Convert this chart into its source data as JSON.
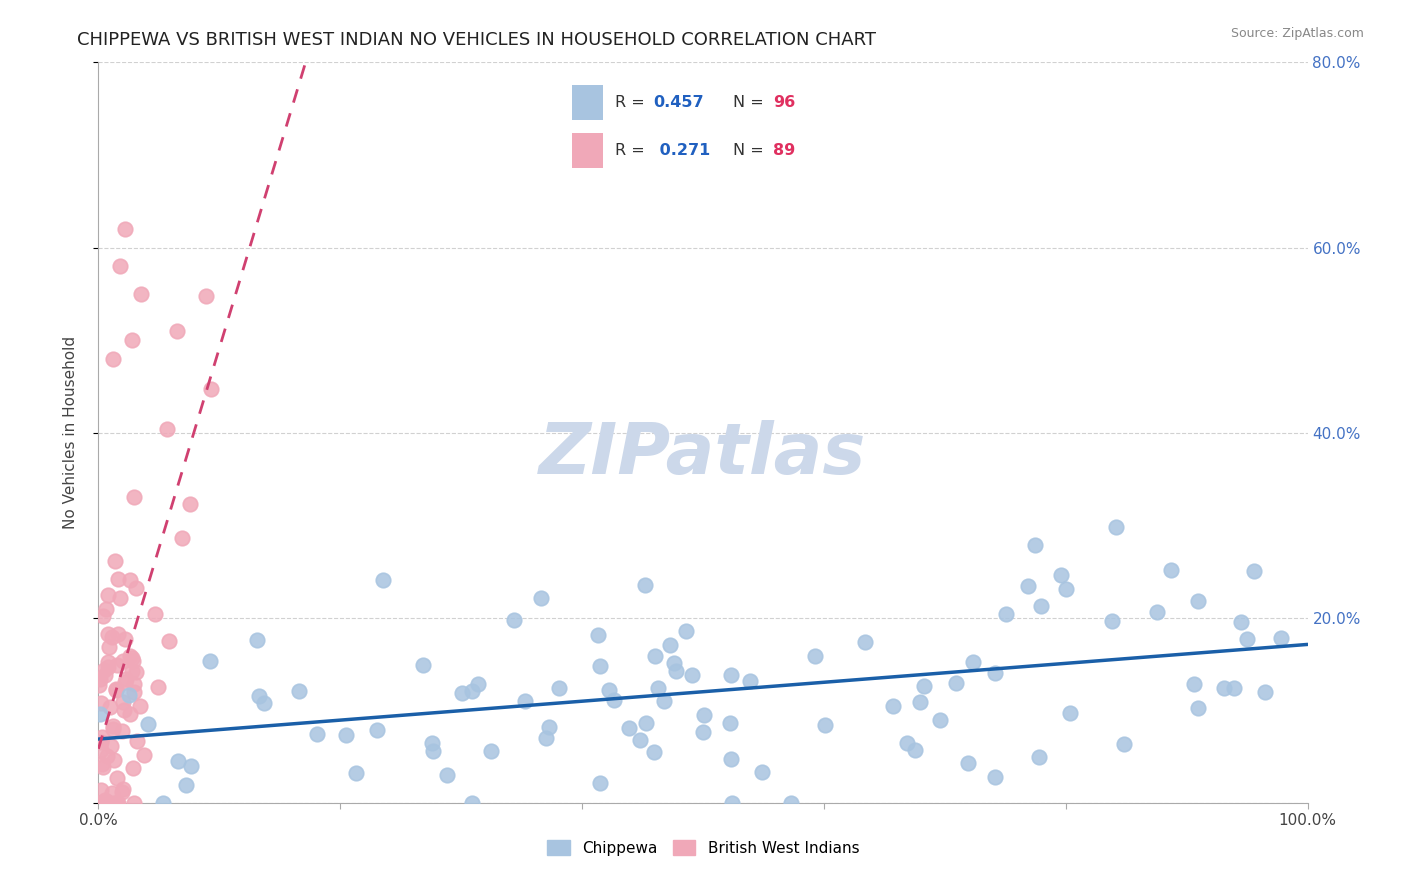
{
  "title": "CHIPPEWA VS BRITISH WEST INDIAN NO VEHICLES IN HOUSEHOLD CORRELATION CHART",
  "source": "Source: ZipAtlas.com",
  "ylabel": "No Vehicles in Household",
  "xlim": [
    0.0,
    100.0
  ],
  "ylim": [
    0.0,
    80.0
  ],
  "chippewa_color": "#a8c4e0",
  "british_color": "#f0a8b8",
  "chippewa_line_color": "#1a5fa8",
  "british_line_color": "#d04070",
  "chippewa_R": 0.457,
  "chippewa_N": 96,
  "british_R": 0.271,
  "british_N": 89,
  "watermark": "ZIPatlas",
  "background_color": "#ffffff",
  "grid_color": "#cccccc",
  "title_fontsize": 13,
  "watermark_color": "#ccd8ea",
  "legend_text_color": "#333333",
  "legend_val_color": "#2060c0",
  "legend_n_color": "#e03060",
  "right_axis_color": "#4472c4"
}
